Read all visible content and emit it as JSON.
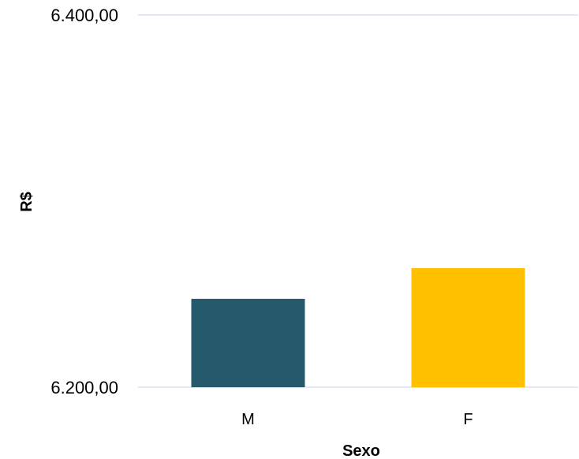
{
  "chart_data": {
    "type": "bar",
    "title": "",
    "xlabel": "Sexo",
    "ylabel": "R$",
    "categories": [
      "M",
      "F"
    ],
    "values": [
      6247.5,
      6264.0
    ],
    "bar_colors": [
      "#245A6B",
      "#FFC000"
    ],
    "ylim": [
      6200,
      6400
    ],
    "yticks": [
      6200,
      6400
    ],
    "ytick_labels": [
      "6.200,00",
      "6.400,00"
    ],
    "grid": true,
    "gridline_color": "#D9E2F1",
    "legend": "none"
  }
}
